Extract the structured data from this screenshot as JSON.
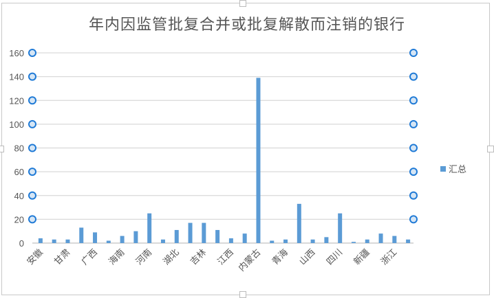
{
  "chart_data": {
    "type": "bar",
    "title": "年内因监管批复合并或批复解散而注销的银行",
    "categories": [
      "安徽",
      "",
      "甘肃",
      "",
      "广西",
      "",
      "海南",
      "",
      "河南",
      "",
      "湖北",
      "",
      "吉林",
      "",
      "江西",
      "",
      "内蒙古",
      "",
      "青海",
      "",
      "山西",
      "",
      "四川",
      "",
      "新疆",
      "",
      "浙江",
      ""
    ],
    "series": [
      {
        "name": "汇总",
        "values": [
          4,
          3,
          3,
          13,
          9,
          2,
          6,
          10,
          25,
          3,
          11,
          17,
          17,
          11,
          4,
          8,
          139,
          2,
          3,
          33,
          3,
          5,
          25,
          1,
          3,
          8,
          6,
          3
        ]
      }
    ],
    "ylim": [
      0,
      160
    ],
    "yticks": [
      0,
      20,
      40,
      60,
      80,
      100,
      120,
      140,
      160
    ],
    "grid": true,
    "legend": "right",
    "color": "#5b9bd5"
  }
}
